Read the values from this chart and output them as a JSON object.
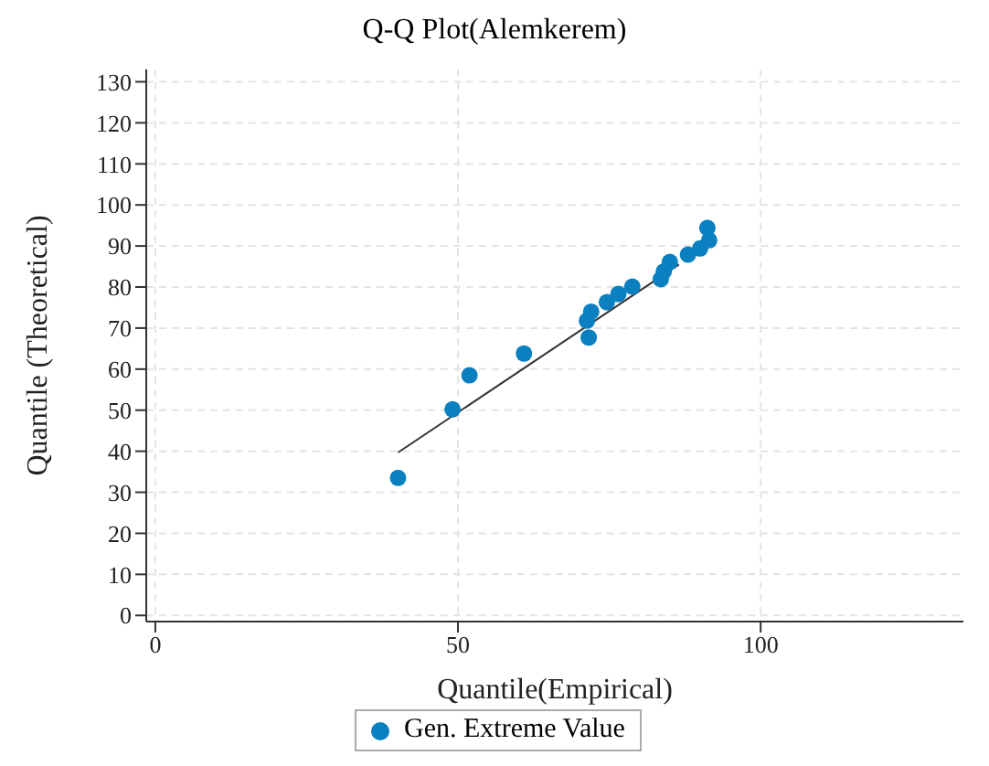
{
  "chart_data": {
    "type": "scatter",
    "title": "Q-Q Plot(Alemkerem)",
    "xlabel": "Quantile(Empirical)",
    "ylabel": "Quantile (Theoretical)",
    "xlim": [
      -1.5,
      133.5
    ],
    "xticks": [
      0,
      50,
      100
    ],
    "ylim": [
      -1.5,
      133
    ],
    "yticks": [
      0,
      10,
      20,
      30,
      40,
      50,
      60,
      70,
      80,
      90,
      100,
      110,
      120,
      130
    ],
    "grid": true,
    "legend": "bottom",
    "marker": "circle",
    "series": [
      {
        "name": "Gen. Extreme Value",
        "color": "#0a80c0",
        "x": [
          40.1,
          49.1,
          51.9,
          60.9,
          71.6,
          71.3,
          72.0,
          74.6,
          76.5,
          78.8,
          83.5,
          84.0,
          85.0,
          88.0,
          90.0,
          91.5,
          91.2
        ],
        "values": [
          33.5,
          50.2,
          58.5,
          63.8,
          67.7,
          71.8,
          74.0,
          76.3,
          78.3,
          80.1,
          81.9,
          83.8,
          86.1,
          87.9,
          89.4,
          91.4,
          94.4
        ]
      },
      {
        "type": "line",
        "color": "#333333",
        "marker": "none",
        "x": [
          40.1,
          86.5
        ],
        "values": [
          39.7,
          85.5
        ]
      }
    ]
  }
}
